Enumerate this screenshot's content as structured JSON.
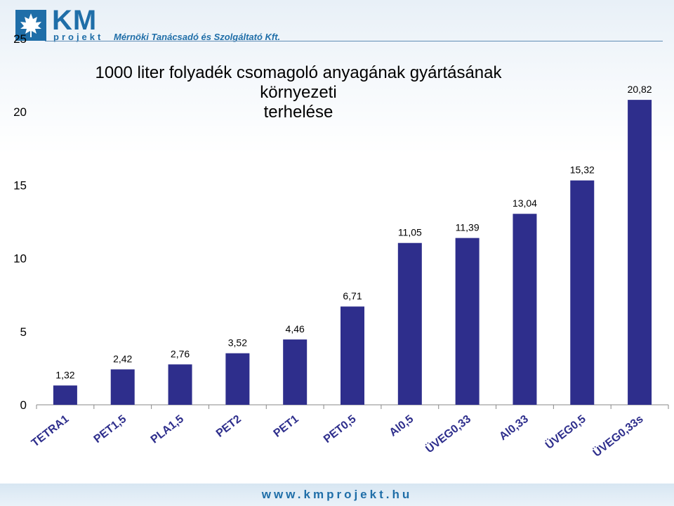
{
  "logo": {
    "brand": "KM",
    "subbrand": "projekt",
    "tagline": "Mérnöki Tanácsadó és Szolgáltató Kft.",
    "icon": "maple-leaf-icon"
  },
  "footer": {
    "url": "www.kmprojekt.hu"
  },
  "colors": {
    "bar": "#2e2e8c",
    "accent": "#1f6ea8"
  },
  "chart_data": {
    "type": "bar",
    "title_lines": [
      "1000 liter folyadék csomagoló anyagának gyártásának környezeti",
      "terhelése"
    ],
    "categories": [
      "TETRA1",
      "PET1,5",
      "PLA1,5",
      "PET2",
      "PET1",
      "PET0,5",
      "Al0,5",
      "ÜVEG0,33",
      "Al0,33",
      "ÜVEG0,5",
      "ÜVEG0,33s"
    ],
    "values": [
      1.32,
      2.42,
      2.76,
      3.52,
      4.46,
      6.71,
      11.05,
      11.39,
      13.04,
      15.32,
      20.82
    ],
    "value_labels": [
      "1,32",
      "2,42",
      "2,76",
      "3,52",
      "4,46",
      "6,71",
      "11,05",
      "11,39",
      "13,04",
      "15,32",
      "20,82"
    ],
    "yticks": [
      0,
      5,
      10,
      15,
      20,
      25
    ],
    "ylim": [
      0,
      25
    ],
    "xlabel": "",
    "ylabel": "",
    "grid": false,
    "legend": "none"
  }
}
